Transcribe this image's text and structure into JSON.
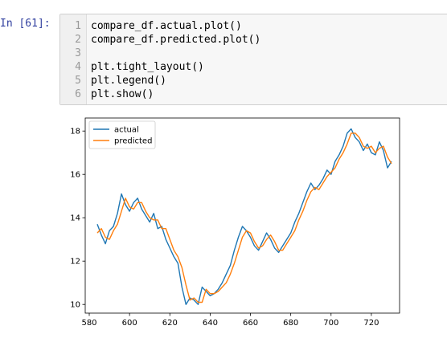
{
  "cell": {
    "prompt": "In [61]:",
    "lines": [
      {
        "num": "1",
        "code": "compare_df.actual.plot()"
      },
      {
        "num": "2",
        "code": "compare_df.predicted.plot()"
      },
      {
        "num": "3",
        "code": ""
      },
      {
        "num": "4",
        "code": "plt.tight_layout()"
      },
      {
        "num": "5",
        "code": "plt.legend()"
      },
      {
        "num": "6",
        "code": "plt.show()"
      }
    ]
  },
  "chart_data": {
    "type": "line",
    "title": "",
    "xlabel": "",
    "ylabel": "",
    "xlim": [
      578,
      734
    ],
    "ylim": [
      9.6,
      18.6
    ],
    "xticks": [
      580,
      600,
      620,
      640,
      660,
      680,
      700,
      720
    ],
    "yticks": [
      10,
      12,
      14,
      16,
      18
    ],
    "legend": "upper-left",
    "grid": false,
    "series": [
      {
        "name": "actual",
        "color": "#1f77b4",
        "x": [
          584,
          586,
          588,
          590,
          592,
          594,
          596,
          598,
          600,
          602,
          604,
          606,
          608,
          610,
          612,
          614,
          616,
          618,
          620,
          622,
          624,
          626,
          628,
          630,
          632,
          634,
          636,
          638,
          640,
          642,
          644,
          646,
          648,
          650,
          652,
          654,
          656,
          658,
          660,
          662,
          664,
          666,
          668,
          670,
          672,
          674,
          676,
          678,
          680,
          682,
          684,
          686,
          688,
          690,
          692,
          694,
          696,
          698,
          700,
          702,
          704,
          706,
          708,
          710,
          712,
          714,
          716,
          718,
          720,
          722,
          724,
          726,
          728,
          730
        ],
        "values": [
          13.7,
          13.2,
          12.8,
          13.4,
          13.6,
          14.2,
          15.1,
          14.6,
          14.3,
          14.7,
          14.9,
          14.4,
          14.1,
          13.8,
          14.2,
          13.5,
          13.6,
          13.0,
          12.6,
          12.2,
          11.9,
          10.8,
          10.0,
          10.3,
          10.2,
          10.0,
          10.8,
          10.6,
          10.4,
          10.5,
          10.7,
          11.0,
          11.4,
          11.8,
          12.5,
          13.1,
          13.6,
          13.4,
          13.1,
          12.7,
          12.5,
          12.9,
          13.3,
          13.0,
          12.6,
          12.4,
          12.7,
          13.0,
          13.3,
          13.8,
          14.2,
          14.7,
          15.2,
          15.6,
          15.3,
          15.5,
          15.8,
          16.2,
          16.0,
          16.6,
          16.9,
          17.3,
          17.9,
          18.1,
          17.7,
          17.5,
          17.1,
          17.4,
          17.0,
          16.9,
          17.5,
          17.1,
          16.3,
          16.6
        ]
      },
      {
        "name": "predicted",
        "color": "#ff7f0e",
        "x": [
          584,
          586,
          588,
          590,
          592,
          594,
          596,
          598,
          600,
          602,
          604,
          606,
          608,
          610,
          612,
          614,
          616,
          618,
          620,
          622,
          624,
          626,
          628,
          630,
          632,
          634,
          636,
          638,
          640,
          642,
          644,
          646,
          648,
          650,
          652,
          654,
          656,
          658,
          660,
          662,
          664,
          666,
          668,
          670,
          672,
          674,
          676,
          678,
          680,
          682,
          684,
          686,
          688,
          690,
          692,
          694,
          696,
          698,
          700,
          702,
          704,
          706,
          708,
          710,
          712,
          714,
          716,
          718,
          720,
          722,
          724,
          726,
          728,
          730
        ],
        "values": [
          13.3,
          13.5,
          13.1,
          13.0,
          13.4,
          13.7,
          14.3,
          14.9,
          14.5,
          14.4,
          14.7,
          14.7,
          14.3,
          14.0,
          13.9,
          13.9,
          13.5,
          13.5,
          13.0,
          12.5,
          12.2,
          11.7,
          10.9,
          10.2,
          10.3,
          10.1,
          10.1,
          10.7,
          10.5,
          10.5,
          10.6,
          10.8,
          11.0,
          11.4,
          11.9,
          12.5,
          13.1,
          13.4,
          13.3,
          12.9,
          12.6,
          12.7,
          13.0,
          13.2,
          12.9,
          12.5,
          12.5,
          12.8,
          13.1,
          13.4,
          13.9,
          14.3,
          14.8,
          15.2,
          15.4,
          15.3,
          15.6,
          15.9,
          16.1,
          16.3,
          16.7,
          17.0,
          17.4,
          17.9,
          17.9,
          17.7,
          17.3,
          17.2,
          17.3,
          17.0,
          17.2,
          17.3,
          16.8,
          16.5
        ]
      }
    ]
  }
}
